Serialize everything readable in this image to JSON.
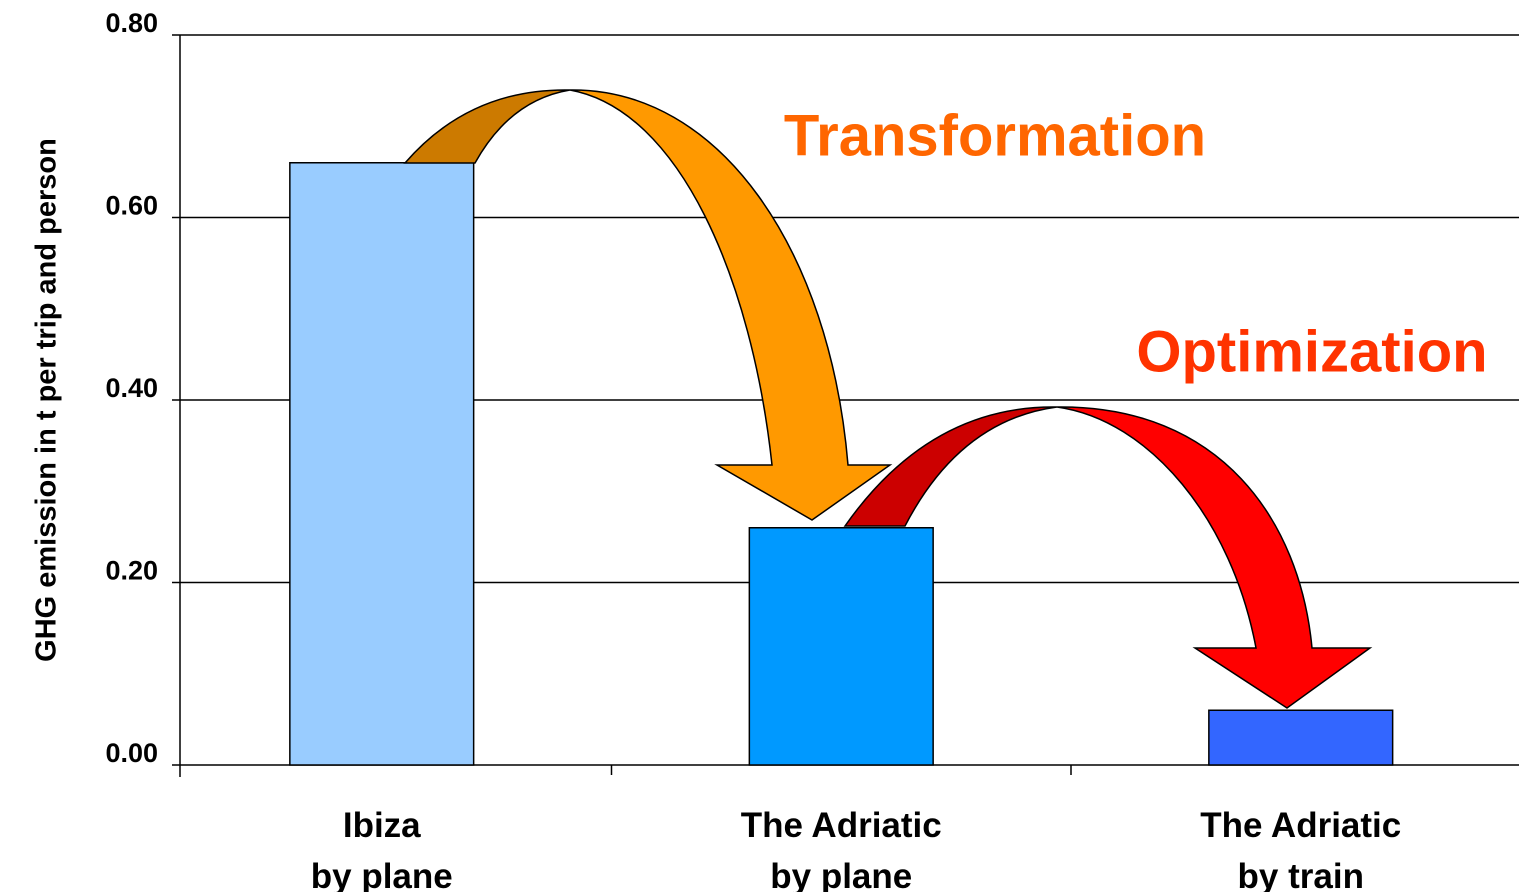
{
  "chart_data": {
    "type": "bar",
    "y_axis_label": "GHG emission in t per trip and person",
    "categories": [
      "Ibiza\nby plane",
      "The Adriatic\nby plane",
      "The Adriatic\nby train"
    ],
    "values": [
      0.66,
      0.26,
      0.06
    ],
    "colors": [
      "#99ccff",
      "#0099ff",
      "#3366ff"
    ],
    "ylim": [
      0,
      0.8
    ],
    "yticks": [
      {
        "value": 0,
        "label": "0.00"
      },
      {
        "value": 0.2,
        "label": "0.20"
      },
      {
        "value": 0.4,
        "label": "0.40"
      },
      {
        "value": 0.6,
        "label": "0.60"
      },
      {
        "value": 0.8,
        "label": "0.80"
      }
    ],
    "grid": true,
    "annotations": [
      {
        "text": "Transformation",
        "color": "#ff6600"
      },
      {
        "text": "Optimization",
        "color": "#ff3300"
      }
    ]
  }
}
